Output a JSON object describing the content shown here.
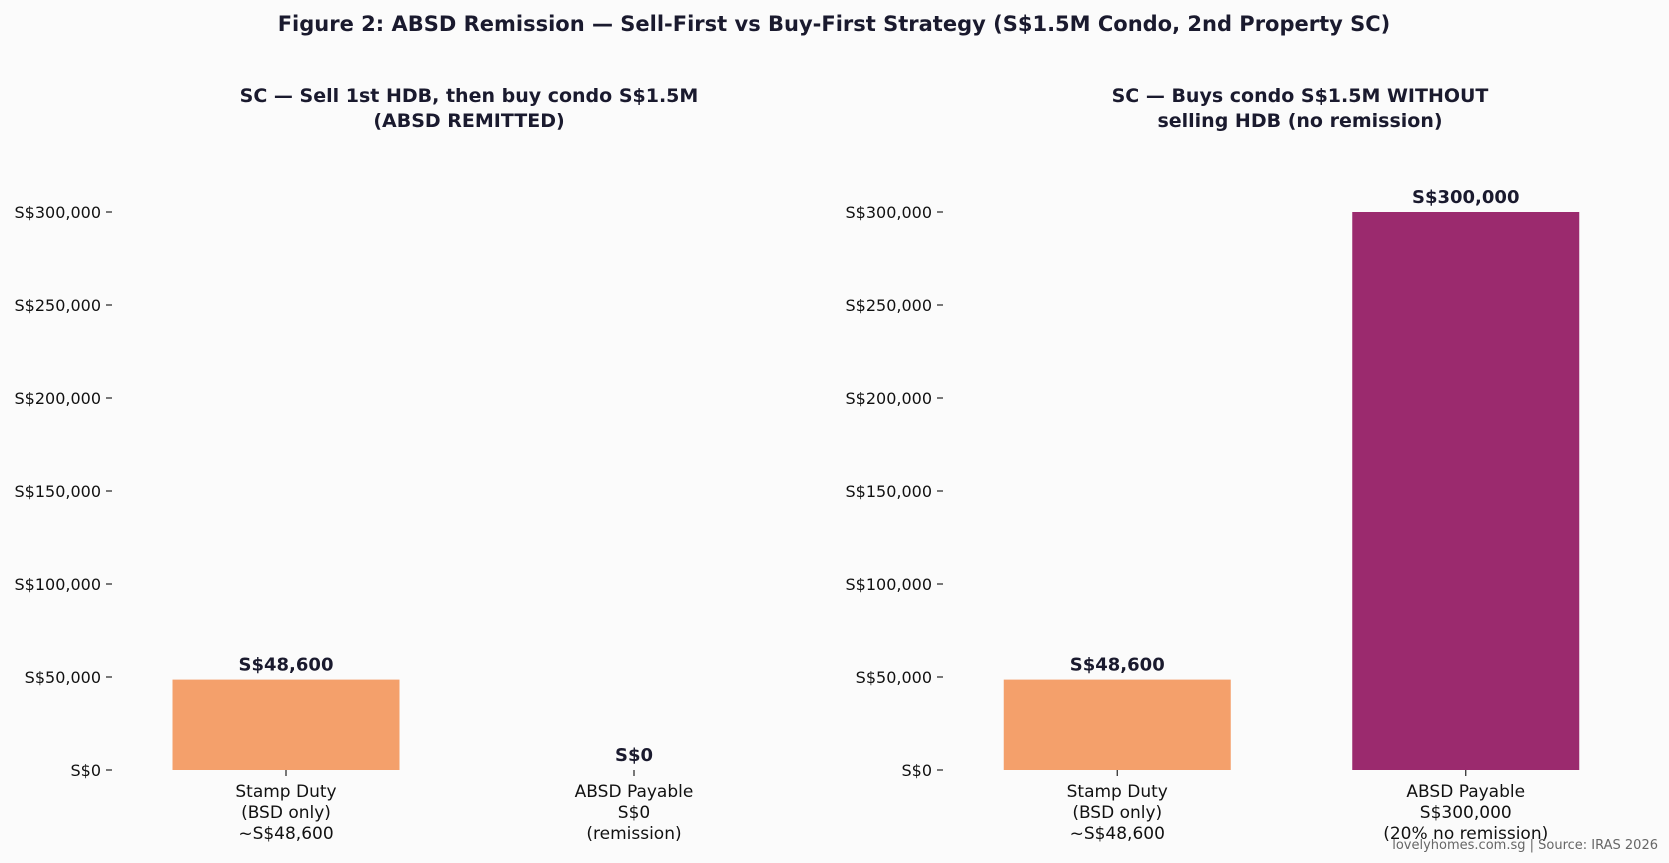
{
  "figure_title": "Figure 2: ABSD Remission — Sell-First vs Buy-First Strategy (S$1.5M Condo, 2nd Property SC)",
  "footer": "lovelyhomes.com.sg  |  Source: IRAS 2026",
  "colors": {
    "bsd": "#F4A06B",
    "absd": "#9B2A6E",
    "text": "#1a1a2e"
  },
  "chart_data": [
    {
      "type": "bar",
      "title_lines": [
        "SC — Sell 1st HDB, then buy condo S$1.5M",
        "(ABSD REMITTED)"
      ],
      "categories": [
        [
          "Stamp Duty",
          "(BSD only)",
          "~S$48,600"
        ],
        [
          "ABSD Payable",
          "S$0",
          "(remission)"
        ]
      ],
      "values": [
        48600,
        0
      ],
      "value_labels": [
        "S$48,600",
        "S$0"
      ],
      "bar_colors": [
        "#F4A06B",
        "#9B2A6E"
      ],
      "ylim": [
        0,
        300000
      ],
      "yticks": [
        0,
        50000,
        100000,
        150000,
        200000,
        250000,
        300000
      ],
      "ytick_labels": [
        "S$0",
        "S$50,000",
        "S$100,000",
        "S$150,000",
        "S$200,000",
        "S$250,000",
        "S$300,000"
      ],
      "grid": false
    },
    {
      "type": "bar",
      "title_lines": [
        "SC — Buys condo S$1.5M WITHOUT",
        "selling HDB (no remission)"
      ],
      "categories": [
        [
          "Stamp Duty",
          "(BSD only)",
          "~S$48,600"
        ],
        [
          "ABSD Payable",
          "S$300,000",
          "(20% no remission)"
        ]
      ],
      "values": [
        48600,
        300000
      ],
      "value_labels": [
        "S$48,600",
        "S$300,000"
      ],
      "bar_colors": [
        "#F4A06B",
        "#9B2A6E"
      ],
      "ylim": [
        0,
        300000
      ],
      "yticks": [
        0,
        50000,
        100000,
        150000,
        200000,
        250000,
        300000
      ],
      "ytick_labels": [
        "S$0",
        "S$50,000",
        "S$100,000",
        "S$150,000",
        "S$200,000",
        "S$250,000",
        "S$300,000"
      ],
      "grid": false
    }
  ]
}
